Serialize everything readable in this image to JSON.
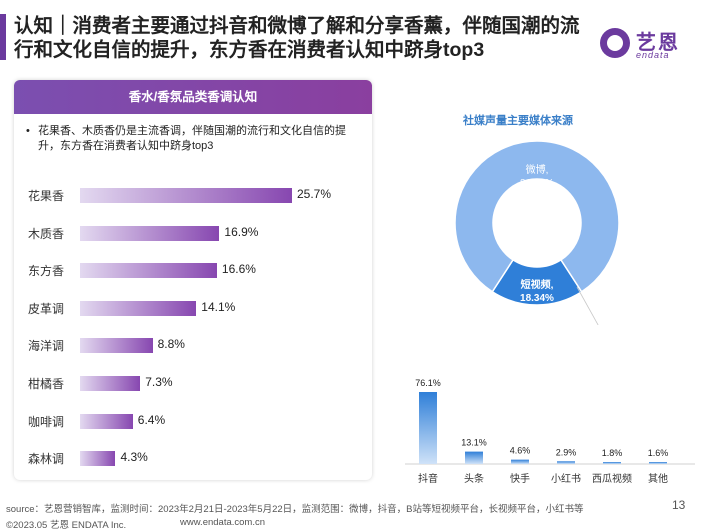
{
  "title": "认知｜消费者主要通过抖音和微博了解和分享香薰，伴随国潮的流行和文化自信的提升，东方香在消费者认知中跻身top3",
  "logo": {
    "cn": "艺恩",
    "en": "endata"
  },
  "panel": {
    "header": "香水/香氛品类香调认知",
    "bullet": "•",
    "note": "花果香、木质香仍是主流香调，伴随国潮的流行和文化自信的提升，东方香在消费者认知中跻身top3"
  },
  "colors": {
    "accent": "#6b3a9e",
    "bar_end": "#8747b0",
    "donut_main": "#8db8ee",
    "donut_minor": "#2f7fd8",
    "media_bar": "#2f7fd8",
    "media_title": "#3a7fc8"
  },
  "chart_data": [
    {
      "type": "bar",
      "orientation": "horizontal",
      "title": "香水/香氛品类香调认知",
      "categories": [
        "花果香",
        "木质香",
        "东方香",
        "皮革调",
        "海洋调",
        "柑橘香",
        "咖啡调",
        "森林调"
      ],
      "values": [
        25.7,
        16.9,
        16.6,
        14.1,
        8.8,
        7.3,
        6.4,
        4.3
      ],
      "value_labels": [
        "25.7%",
        "16.9%",
        "16.6%",
        "14.1%",
        "8.8%",
        "7.3%",
        "6.4%",
        "4.3%"
      ],
      "unit": "%"
    },
    {
      "type": "pie",
      "title": "社媒声量主要媒体来源",
      "categories": [
        "微博,",
        "短视频,"
      ],
      "values": [
        81.66,
        18.34
      ],
      "value_labels": [
        "81.66%",
        "18.34%"
      ],
      "colors": [
        "#8db8ee",
        "#2f7fd8"
      ]
    },
    {
      "type": "bar",
      "orientation": "vertical",
      "categories": [
        "抖音",
        "头条",
        "快手",
        "小红书",
        "西瓜视频",
        "其他"
      ],
      "values": [
        76.1,
        13.1,
        4.6,
        2.9,
        1.8,
        1.6
      ],
      "value_labels": [
        "76.1%",
        "13.1%",
        "4.6%",
        "2.9%",
        "1.8%",
        "1.6%"
      ],
      "unit": "%"
    }
  ],
  "footer": {
    "source": "source：艺恩营销智库，监测时间：2023年2月21日-2023年5月22日，监测范围：微博，抖音，B站等短视频平台，长视频平台，小红书等",
    "copyright": "©2023.05 艺恩 ENDATA Inc.",
    "website": "www.endata.com.cn",
    "page": "13"
  }
}
